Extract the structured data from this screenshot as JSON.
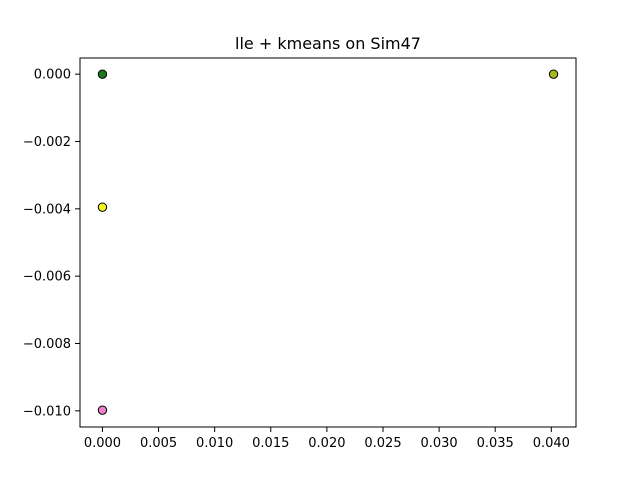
{
  "chart_data": {
    "type": "scatter",
    "title": "lle + kmeans on Sim47",
    "xlabel": "",
    "ylabel": "",
    "xlim": [
      -0.002,
      0.0422
    ],
    "ylim": [
      -0.01048,
      0.00048
    ],
    "x_ticks": [
      0.0,
      0.005,
      0.01,
      0.015,
      0.02,
      0.025,
      0.03,
      0.035,
      0.04
    ],
    "x_tick_labels": [
      "0.000",
      "0.005",
      "0.010",
      "0.015",
      "0.020",
      "0.025",
      "0.030",
      "0.035",
      "0.040"
    ],
    "y_ticks": [
      0.0,
      -0.002,
      -0.004,
      -0.006,
      -0.008,
      -0.01
    ],
    "y_tick_labels": [
      "0.000",
      "−0.002",
      "−0.004",
      "−0.006",
      "−0.008",
      "−0.010"
    ],
    "grid": false,
    "legend": false,
    "points": [
      {
        "x": 0.0,
        "y": 0.0,
        "color": "#1a7a1a"
      },
      {
        "x": 0.0,
        "y": -0.00395,
        "color": "#f5f51a"
      },
      {
        "x": 0.0,
        "y": -0.00998,
        "color": "#ee82c8"
      },
      {
        "x": 0.0402,
        "y": 0.0,
        "color": "#a8b820"
      }
    ]
  }
}
